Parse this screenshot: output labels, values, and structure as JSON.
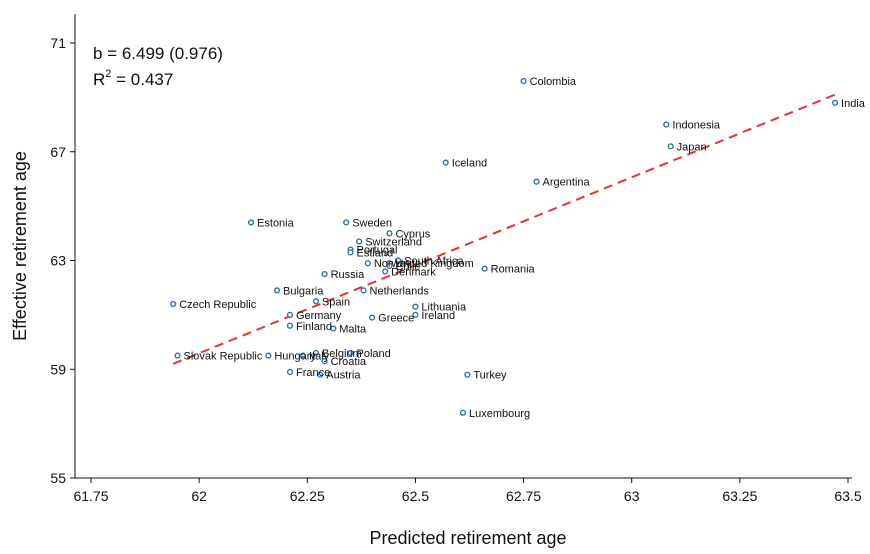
{
  "chart_data": {
    "type": "scatter",
    "title": "",
    "xlabel": "Predicted retirement age",
    "ylabel": "Effective retirement age",
    "xlim": [
      61.75,
      63.5
    ],
    "ylim": [
      55,
      71
    ],
    "xticks": [
      61.75,
      62,
      62.25,
      62.5,
      62.75,
      63,
      63.25,
      63.5
    ],
    "xtick_labels": [
      "61.75",
      "62",
      "62.25",
      "62.5",
      "62.75",
      "63",
      "63.25",
      "63.5"
    ],
    "yticks": [
      55,
      59,
      63,
      67,
      71
    ],
    "ytick_labels": [
      "55",
      "59",
      "63",
      "67",
      "71"
    ],
    "grid": false,
    "legend": "none",
    "colors": {
      "points": "#2e6fb5",
      "fit": "#e8322e",
      "axis": "#111111"
    },
    "annotations": {
      "slope": "b = 6.499 (0.976)",
      "r2_base": "R",
      "r2_sup": "2",
      "r2_rest": " = 0.437"
    },
    "fit_line": {
      "slope": 6.499,
      "x": [
        61.94,
        63.47
      ],
      "y": [
        59.2,
        69.1
      ],
      "style": "dashed"
    },
    "points": [
      {
        "label": "India",
        "x": 63.47,
        "y": 68.8
      },
      {
        "label": "Colombia",
        "x": 62.75,
        "y": 69.6
      },
      {
        "label": "Indonesia",
        "x": 63.08,
        "y": 68.0
      },
      {
        "label": "Japan",
        "x": 63.09,
        "y": 67.2
      },
      {
        "label": "Iceland",
        "x": 62.57,
        "y": 66.6
      },
      {
        "label": "Argentina",
        "x": 62.78,
        "y": 65.9
      },
      {
        "label": "Estonia",
        "x": 62.12,
        "y": 64.4
      },
      {
        "label": "Sweden",
        "x": 62.34,
        "y": 64.4
      },
      {
        "label": "Cyprus",
        "x": 62.44,
        "y": 64.0
      },
      {
        "label": "Switzerland",
        "x": 62.37,
        "y": 63.7
      },
      {
        "label": "Portugal",
        "x": 62.35,
        "y": 63.4
      },
      {
        "label": "Estland",
        "x": 62.35,
        "y": 63.3
      },
      {
        "label": "South Africa",
        "x": 62.46,
        "y": 63.0
      },
      {
        "label": "Norway",
        "x": 62.39,
        "y": 62.9
      },
      {
        "label": "United Kingdom",
        "x": 62.44,
        "y": 62.9
      },
      {
        "label": "Chile",
        "x": 62.44,
        "y": 62.8
      },
      {
        "label": "Russia",
        "x": 62.29,
        "y": 62.5
      },
      {
        "label": "Denmark",
        "x": 62.43,
        "y": 62.6
      },
      {
        "label": "Romania",
        "x": 62.66,
        "y": 62.7
      },
      {
        "label": "Bulgaria",
        "x": 62.18,
        "y": 61.9
      },
      {
        "label": "Netherlands",
        "x": 62.38,
        "y": 61.9
      },
      {
        "label": "Czech Republic",
        "x": 61.94,
        "y": 61.4
      },
      {
        "label": "Spain",
        "x": 62.27,
        "y": 61.5
      },
      {
        "label": "Lithuania",
        "x": 62.5,
        "y": 61.3
      },
      {
        "label": "Germany",
        "x": 62.21,
        "y": 61.0
      },
      {
        "label": "Ireland",
        "x": 62.5,
        "y": 61.0
      },
      {
        "label": "Greece",
        "x": 62.4,
        "y": 60.9
      },
      {
        "label": "Finland",
        "x": 62.21,
        "y": 60.6
      },
      {
        "label": "Malta",
        "x": 62.31,
        "y": 60.5
      },
      {
        "label": "Slovak Republic",
        "x": 61.95,
        "y": 59.5
      },
      {
        "label": "Hungary",
        "x": 62.16,
        "y": 59.5
      },
      {
        "label": "Italy",
        "x": 62.24,
        "y": 59.5
      },
      {
        "label": "Belgium",
        "x": 62.27,
        "y": 59.6
      },
      {
        "label": "Poland",
        "x": 62.35,
        "y": 59.6
      },
      {
        "label": "Croatia",
        "x": 62.29,
        "y": 59.3
      },
      {
        "label": "France",
        "x": 62.21,
        "y": 58.9
      },
      {
        "label": "Austria",
        "x": 62.28,
        "y": 58.8
      },
      {
        "label": "Turkey",
        "x": 62.62,
        "y": 58.8
      },
      {
        "label": "Luxembourg",
        "x": 62.61,
        "y": 57.4
      }
    ]
  }
}
